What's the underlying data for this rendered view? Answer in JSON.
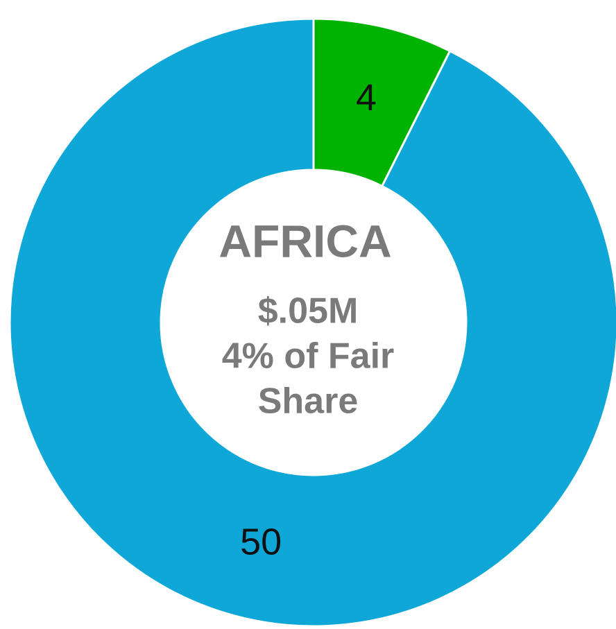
{
  "chart_data": {
    "type": "donut",
    "values": [
      4,
      50
    ],
    "colors": [
      "#00b300",
      "#0ea7d8"
    ],
    "center_title": "AFRICA",
    "center_lines": [
      "$.05M",
      "4% of Fair",
      "Share"
    ]
  }
}
